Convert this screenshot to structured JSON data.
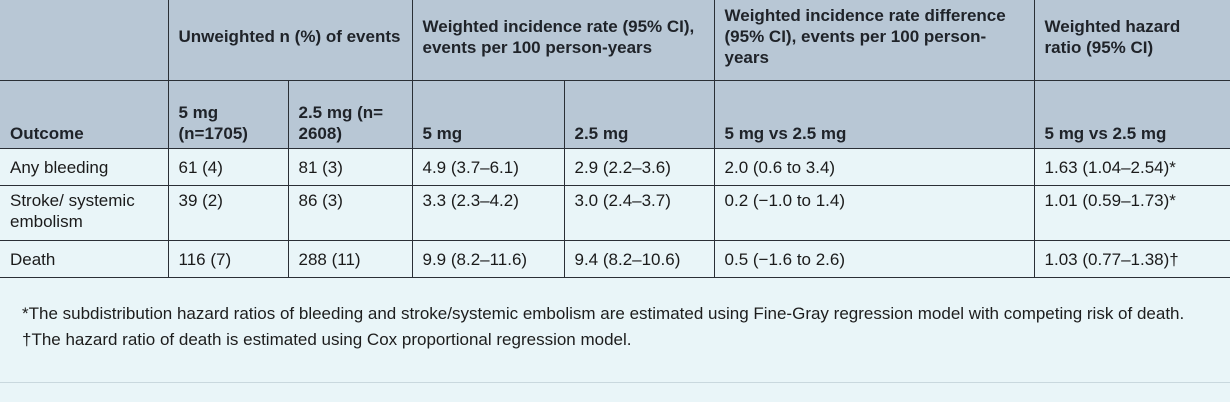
{
  "table": {
    "group_headers": {
      "outcome_blank": "",
      "unweighted": "Unweighted n (%) of events",
      "incidence_rate": "Weighted incidence rate (95% CI), events per 100 person-years",
      "rate_difference": "Weighted incidence rate difference (95% CI), events per 100 person-years",
      "hazard_ratio": "Weighted hazard ratio (95% CI)"
    },
    "sub_headers": {
      "outcome": "Outcome",
      "unw_5mg": "5 mg (n=1705)",
      "unw_25mg": "2.5 mg (n= 2608)",
      "ir_5mg": "5 mg",
      "ir_25mg": "2.5 mg",
      "diff": "5 mg vs 2.5 mg",
      "hr": "5 mg vs 2.5 mg"
    },
    "rows": [
      {
        "outcome": "Any bleeding",
        "unw_5mg": "61 (4)",
        "unw_25mg": "81 (3)",
        "ir_5mg": "4.9 (3.7–6.1)",
        "ir_25mg": "2.9 (2.2–3.6)",
        "diff": "2.0 (0.6 to 3.4)",
        "hr": "1.63 (1.04–2.54)*"
      },
      {
        "outcome": "Stroke/ systemic embolism",
        "unw_5mg": "39 (2)",
        "unw_25mg": "86 (3)",
        "ir_5mg": "3.3 (2.3–4.2)",
        "ir_25mg": "3.0 (2.4–3.7)",
        "diff": "0.2 (−1.0 to 1.4)",
        "hr": "1.01 (0.59–1.73)*"
      },
      {
        "outcome": "Death",
        "unw_5mg": "116 (7)",
        "unw_25mg": "288 (11)",
        "ir_5mg": "9.9 (8.2–11.6)",
        "ir_25mg": "9.4 (8.2–10.6)",
        "diff": "0.5 (−1.6 to 2.6)",
        "hr": "1.03 (0.77–1.38)†"
      }
    ]
  },
  "footnotes": {
    "note1": "*The subdistribution hazard ratios of bleeding and stroke/systemic embolism are estimated using Fine-Gray regression model with competing risk of death.",
    "note2": "†The hazard ratio of death is estimated using Cox proportional regression model."
  },
  "colors": {
    "header_bg": "#b8c7d5",
    "body_bg": "#e9f5f8",
    "border": "#2a2f36"
  }
}
